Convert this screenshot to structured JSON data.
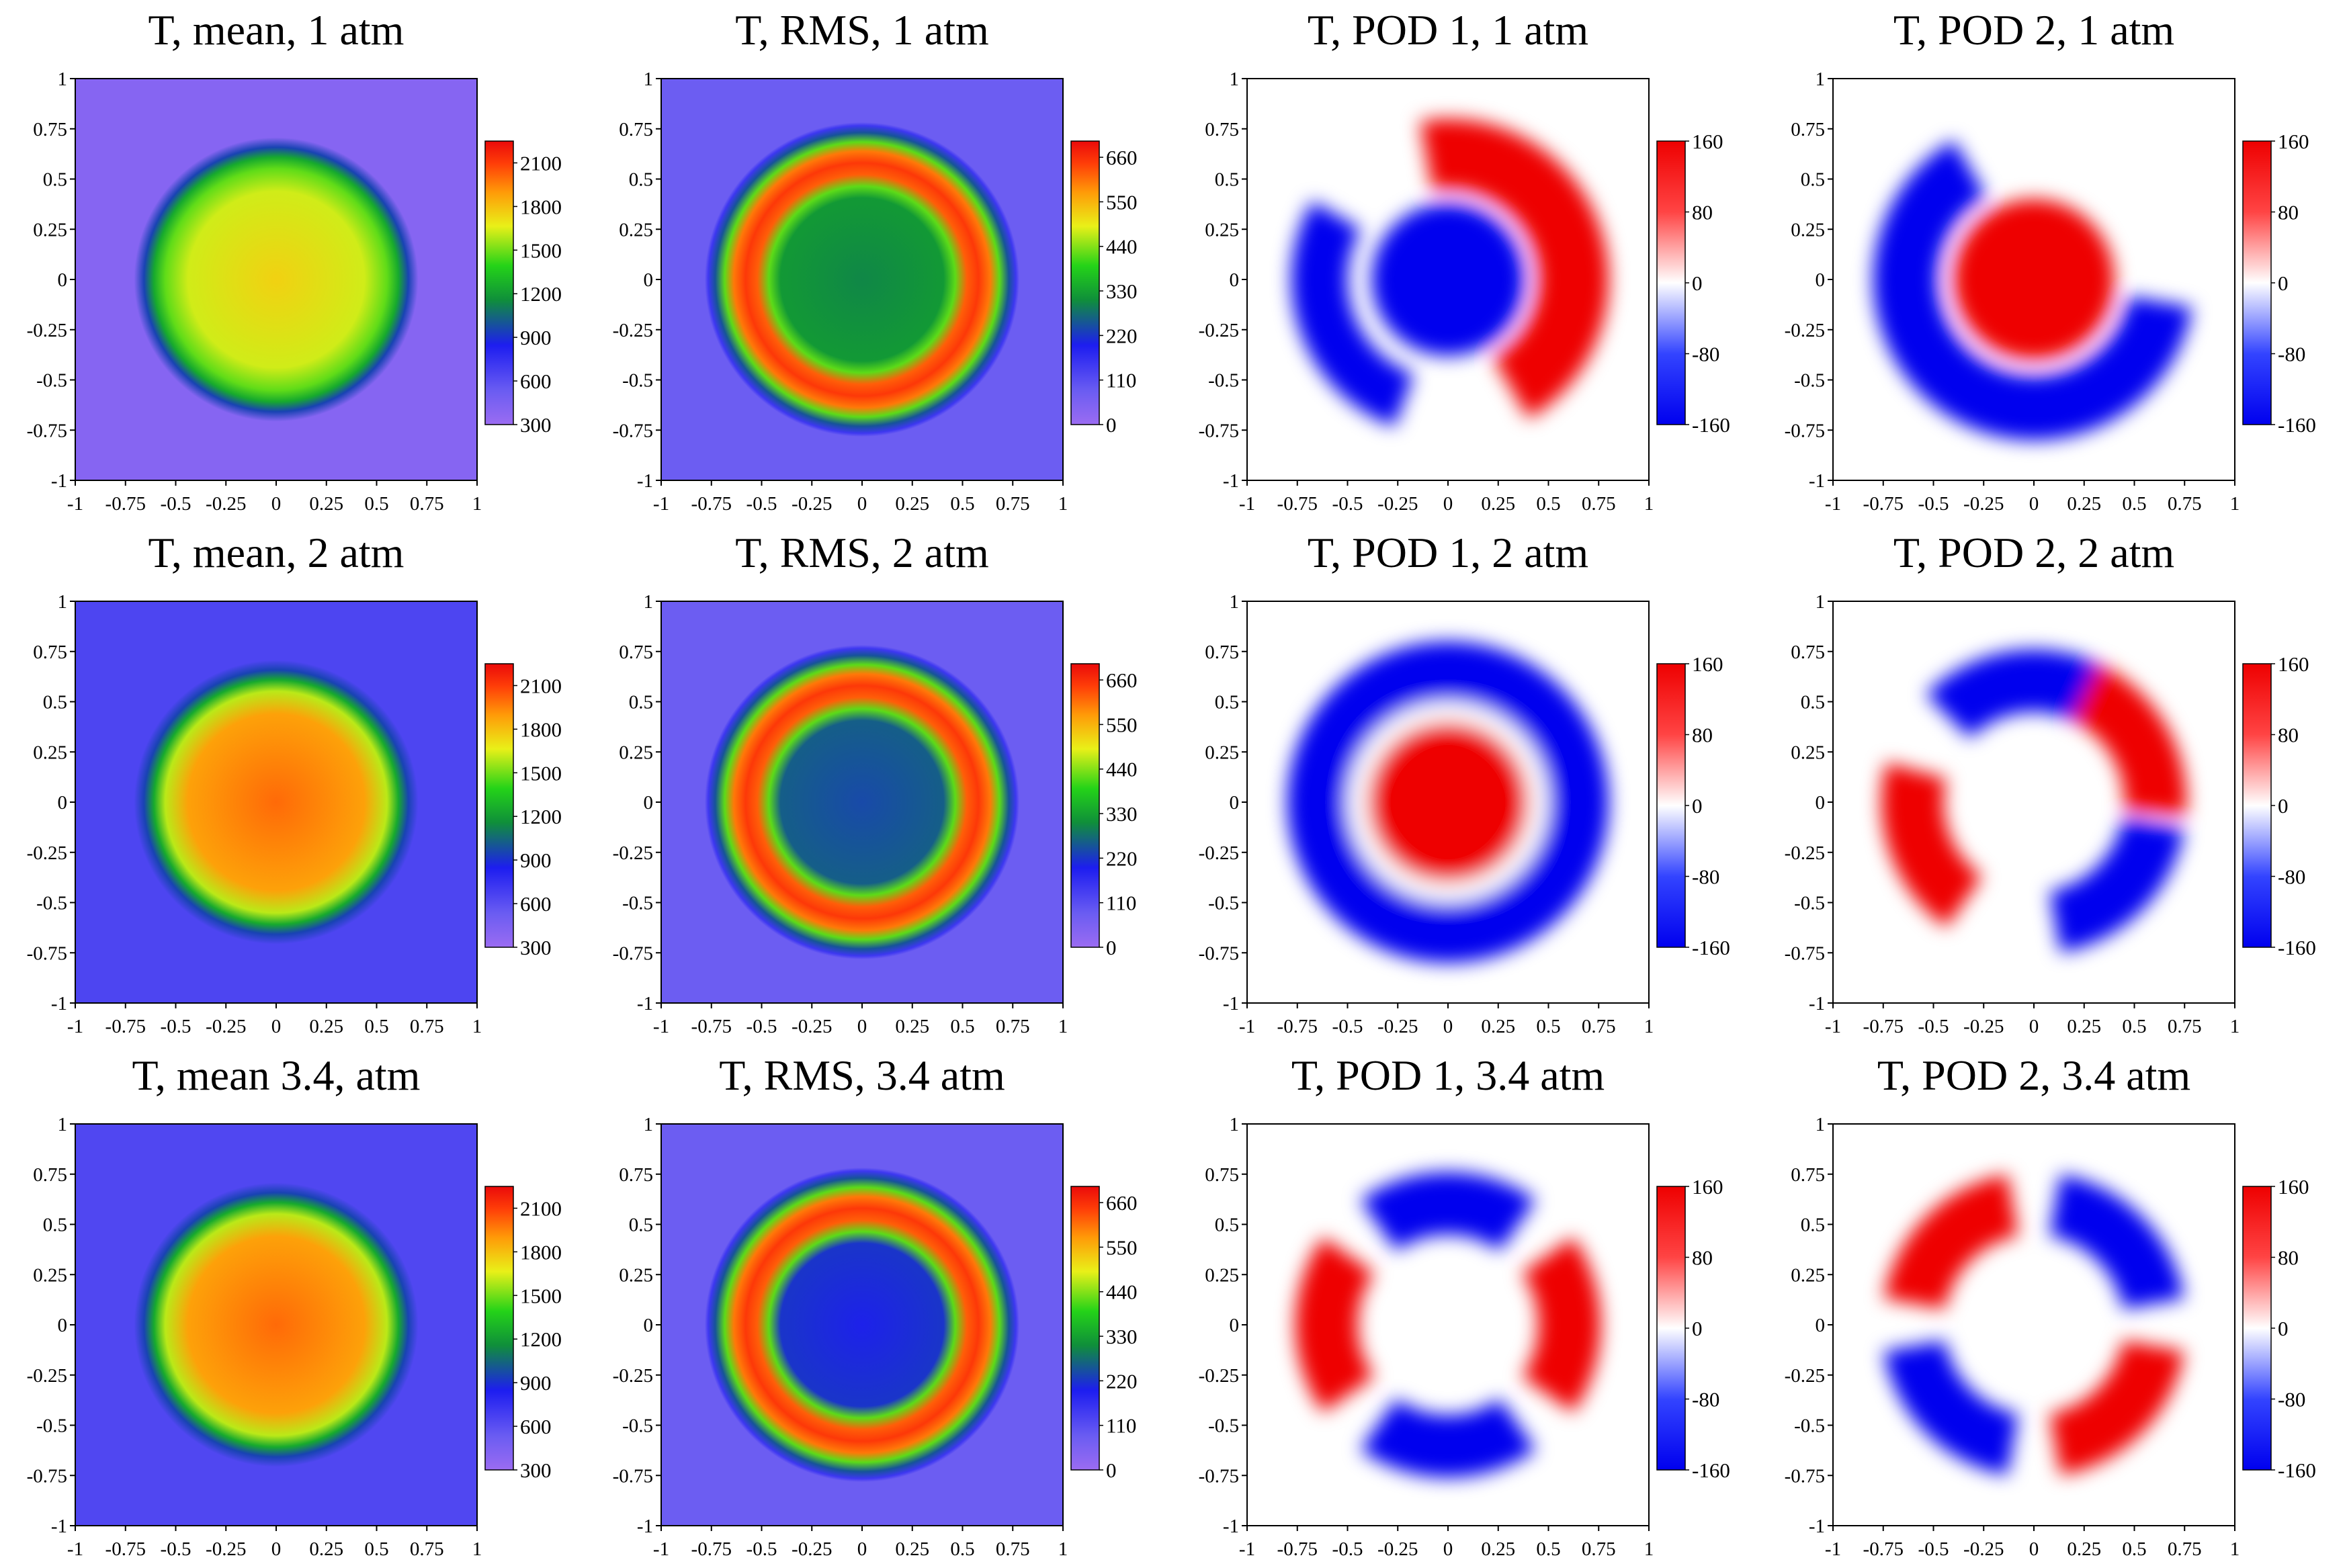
{
  "chart_data": [
    {
      "type": "heatmap",
      "field": "mean",
      "title": "T, mean, 1 atm",
      "pressure_atm": 1,
      "xlim": [
        -1,
        1
      ],
      "ylim": [
        -1,
        1
      ],
      "x_ticks": [
        "-1",
        "-0.75",
        "-0.5",
        "-0.25",
        "0",
        "0.25",
        "0.5",
        "0.75",
        "1"
      ],
      "y_ticks": [
        "1",
        "0.75",
        "0.5",
        "0.25",
        "0",
        "-0.25",
        "-0.5",
        "-0.75",
        "-1"
      ],
      "colorbar": {
        "ticks": [
          "2100",
          "1800",
          "1500",
          "1200",
          "900",
          "600",
          "300"
        ],
        "range": [
          300,
          2250
        ],
        "colormap": "rainbow (purple-blue-green-yellow-red)"
      },
      "pattern": "disk",
      "core_value": 1750,
      "disk_radius": 0.58,
      "background_value": 400
    },
    {
      "type": "heatmap",
      "field": "rms",
      "title": "T, RMS, 1 atm",
      "pressure_atm": 1,
      "xlim": [
        -1,
        1
      ],
      "ylim": [
        -1,
        1
      ],
      "x_ticks": [
        "-1",
        "-0.75",
        "-0.5",
        "-0.25",
        "0",
        "0.25",
        "0.5",
        "0.75",
        "1"
      ],
      "y_ticks": [
        "1",
        "0.75",
        "0.5",
        "0.25",
        "0",
        "-0.25",
        "-0.5",
        "-0.75",
        "-1"
      ],
      "colorbar": {
        "ticks": [
          "660",
          "550",
          "440",
          "330",
          "220",
          "110",
          "0"
        ],
        "range": [
          0,
          700
        ],
        "colormap": "rainbow (purple-blue-green-yellow-red)"
      },
      "pattern": "ring",
      "ring_radius": 0.58,
      "ring_peak": 650,
      "core_value": 300,
      "background_value": 80
    },
    {
      "type": "heatmap",
      "field": "pod1",
      "title": "T, POD 1, 1 atm",
      "pressure_atm": 1,
      "xlim": [
        -1,
        1
      ],
      "ylim": [
        -1,
        1
      ],
      "x_ticks": [
        "-1",
        "-0.75",
        "-0.5",
        "-0.25",
        "0",
        "0.25",
        "0.5",
        "0.75",
        "1"
      ],
      "y_ticks": [
        "1",
        "0.75",
        "0.5",
        "0.25",
        "0",
        "-0.25",
        "-0.5",
        "-0.75",
        "-1"
      ],
      "colorbar": {
        "ticks": [
          "160",
          "80",
          "0",
          "-80",
          "-160"
        ],
        "range": [
          -160,
          160
        ],
        "colormap": "diverging blue-white-red"
      },
      "pattern": "core plus two lobes",
      "core_value": -160,
      "lobes": [
        {
          "angle_deg": 20,
          "value": 160
        },
        {
          "angle_deg": 200,
          "value": -160
        }
      ]
    },
    {
      "type": "heatmap",
      "field": "pod2",
      "title": "T, POD 2, 1 atm",
      "pressure_atm": 1,
      "xlim": [
        -1,
        1
      ],
      "ylim": [
        -1,
        1
      ],
      "x_ticks": [
        "-1",
        "-0.75",
        "-0.5",
        "-0.25",
        "0",
        "0.25",
        "0.5",
        "0.75",
        "1"
      ],
      "y_ticks": [
        "1",
        "0.75",
        "0.5",
        "0.25",
        "0",
        "-0.25",
        "-0.5",
        "-0.75",
        "-1"
      ],
      "colorbar": {
        "ticks": [
          "160",
          "80",
          "0",
          "-80",
          "-160"
        ],
        "range": [
          -160,
          160
        ],
        "colormap": "diverging blue-white-red"
      },
      "pattern": "core plus crescent",
      "core_value": 160,
      "crescent": {
        "angle_deg": 225,
        "value": -160
      }
    },
    {
      "type": "heatmap",
      "field": "mean",
      "title": "T, mean, 2 atm",
      "pressure_atm": 2,
      "xlim": [
        -1,
        1
      ],
      "ylim": [
        -1,
        1
      ],
      "x_ticks": [
        "-1",
        "-0.75",
        "-0.5",
        "-0.25",
        "0",
        "0.25",
        "0.5",
        "0.75",
        "1"
      ],
      "y_ticks": [
        "1",
        "0.75",
        "0.5",
        "0.25",
        "0",
        "-0.25",
        "-0.5",
        "-0.75",
        "-1"
      ],
      "colorbar": {
        "ticks": [
          "2100",
          "1800",
          "1500",
          "1200",
          "900",
          "600",
          "300"
        ],
        "range": [
          300,
          2250
        ],
        "colormap": "rainbow (purple-blue-green-yellow-red)"
      },
      "pattern": "disk",
      "core_value": 2000,
      "disk_radius": 0.58,
      "background_value": 650
    },
    {
      "type": "heatmap",
      "field": "rms",
      "title": "T, RMS, 2 atm",
      "pressure_atm": 2,
      "xlim": [
        -1,
        1
      ],
      "ylim": [
        -1,
        1
      ],
      "x_ticks": [
        "-1",
        "-0.75",
        "-0.5",
        "-0.25",
        "0",
        "0.25",
        "0.5",
        "0.75",
        "1"
      ],
      "y_ticks": [
        "1",
        "0.75",
        "0.5",
        "0.25",
        "0",
        "-0.25",
        "-0.5",
        "-0.75",
        "-1"
      ],
      "colorbar": {
        "ticks": [
          "660",
          "550",
          "440",
          "330",
          "220",
          "110",
          "0"
        ],
        "range": [
          0,
          700
        ],
        "colormap": "rainbow (purple-blue-green-yellow-red)"
      },
      "pattern": "ring",
      "ring_radius": 0.58,
      "ring_peak": 650,
      "core_value": 240,
      "background_value": 80
    },
    {
      "type": "heatmap",
      "field": "pod1",
      "title": "T, POD 1, 2 atm",
      "pressure_atm": 2,
      "xlim": [
        -1,
        1
      ],
      "ylim": [
        -1,
        1
      ],
      "x_ticks": [
        "-1",
        "-0.75",
        "-0.5",
        "-0.25",
        "0",
        "0.25",
        "0.5",
        "0.75",
        "1"
      ],
      "y_ticks": [
        "1",
        "0.75",
        "0.5",
        "0.25",
        "0",
        "-0.25",
        "-0.5",
        "-0.75",
        "-1"
      ],
      "colorbar": {
        "ticks": [
          "160",
          "80",
          "0",
          "-80",
          "-160"
        ],
        "range": [
          -160,
          160
        ],
        "colormap": "diverging blue-white-red"
      },
      "pattern": "core plus annulus",
      "core_value": 160,
      "annulus_value": -160
    },
    {
      "type": "heatmap",
      "field": "pod2",
      "title": "T, POD 2, 2 atm",
      "pressure_atm": 2,
      "xlim": [
        -1,
        1
      ],
      "ylim": [
        -1,
        1
      ],
      "x_ticks": [
        "-1",
        "-0.75",
        "-0.5",
        "-0.25",
        "0",
        "0.25",
        "0.5",
        "0.75",
        "1"
      ],
      "y_ticks": [
        "1",
        "0.75",
        "0.5",
        "0.25",
        "0",
        "-0.25",
        "-0.5",
        "-0.75",
        "-1"
      ],
      "colorbar": {
        "ticks": [
          "160",
          "80",
          "0",
          "-80",
          "-160"
        ],
        "range": [
          -160,
          160
        ],
        "colormap": "diverging blue-white-red"
      },
      "pattern": "four lobes",
      "lobes": [
        {
          "angle_deg": 100,
          "value": -160
        },
        {
          "angle_deg": 30,
          "value": 160
        },
        {
          "angle_deg": 200,
          "value": 160
        },
        {
          "angle_deg": 315,
          "value": -160
        }
      ]
    },
    {
      "type": "heatmap",
      "field": "mean",
      "title": "T, mean 3.4, atm",
      "pressure_atm": 3.4,
      "xlim": [
        -1,
        1
      ],
      "ylim": [
        -1,
        1
      ],
      "x_ticks": [
        "-1",
        "-0.75",
        "-0.5",
        "-0.25",
        "0",
        "0.25",
        "0.5",
        "0.75",
        "1"
      ],
      "y_ticks": [
        "1",
        "0.75",
        "0.5",
        "0.25",
        "0",
        "-0.25",
        "-0.5",
        "-0.75",
        "-1"
      ],
      "colorbar": {
        "ticks": [
          "2100",
          "1800",
          "1500",
          "1200",
          "900",
          "600",
          "300"
        ],
        "range": [
          300,
          2250
        ],
        "colormap": "rainbow (purple-blue-green-yellow-red)"
      },
      "pattern": "disk",
      "core_value": 2000,
      "disk_radius": 0.58,
      "background_value": 640
    },
    {
      "type": "heatmap",
      "field": "rms",
      "title": "T, RMS, 3.4 atm",
      "pressure_atm": 3.4,
      "xlim": [
        -1,
        1
      ],
      "ylim": [
        -1,
        1
      ],
      "x_ticks": [
        "-1",
        "-0.75",
        "-0.5",
        "-0.25",
        "0",
        "0.25",
        "0.5",
        "0.75",
        "1"
      ],
      "y_ticks": [
        "1",
        "0.75",
        "0.5",
        "0.25",
        "0",
        "-0.25",
        "-0.5",
        "-0.75",
        "-1"
      ],
      "colorbar": {
        "ticks": [
          "660",
          "550",
          "440",
          "330",
          "220",
          "110",
          "0"
        ],
        "range": [
          0,
          700
        ],
        "colormap": "rainbow (purple-blue-green-yellow-red)"
      },
      "pattern": "ring",
      "ring_radius": 0.58,
      "ring_peak": 650,
      "core_value": 200,
      "background_value": 80
    },
    {
      "type": "heatmap",
      "field": "pod1",
      "title": "T, POD 1, 3.4 atm",
      "pressure_atm": 3.4,
      "xlim": [
        -1,
        1
      ],
      "ylim": [
        -1,
        1
      ],
      "x_ticks": [
        "-1",
        "-0.75",
        "-0.5",
        "-0.25",
        "0",
        "0.25",
        "0.5",
        "0.75",
        "1"
      ],
      "y_ticks": [
        "1",
        "0.75",
        "0.5",
        "0.25",
        "0",
        "-0.25",
        "-0.5",
        "-0.75",
        "-1"
      ],
      "colorbar": {
        "ticks": [
          "160",
          "80",
          "0",
          "-80",
          "-160"
        ],
        "range": [
          -160,
          160
        ],
        "colormap": "diverging blue-white-red"
      },
      "pattern": "four lobes",
      "lobes": [
        {
          "angle_deg": 90,
          "value": -160
        },
        {
          "angle_deg": 270,
          "value": -160
        },
        {
          "angle_deg": 0,
          "value": 160
        },
        {
          "angle_deg": 180,
          "value": 160
        }
      ]
    },
    {
      "type": "heatmap",
      "field": "pod2",
      "title": "T, POD 2, 3.4 atm",
      "pressure_atm": 3.4,
      "xlim": [
        -1,
        1
      ],
      "ylim": [
        -1,
        1
      ],
      "x_ticks": [
        "-1",
        "-0.75",
        "-0.5",
        "-0.25",
        "0",
        "0.25",
        "0.5",
        "0.75",
        "1"
      ],
      "y_ticks": [
        "1",
        "0.75",
        "0.5",
        "0.25",
        "0",
        "-0.25",
        "-0.5",
        "-0.75",
        "-1"
      ],
      "colorbar": {
        "ticks": [
          "160",
          "80",
          "0",
          "-80",
          "-160"
        ],
        "range": [
          -160,
          160
        ],
        "colormap": "diverging blue-white-red"
      },
      "pattern": "four lobes",
      "lobes": [
        {
          "angle_deg": 45,
          "value": -160
        },
        {
          "angle_deg": 225,
          "value": -160
        },
        {
          "angle_deg": 135,
          "value": 160
        },
        {
          "angle_deg": 315,
          "value": 160
        }
      ]
    }
  ]
}
